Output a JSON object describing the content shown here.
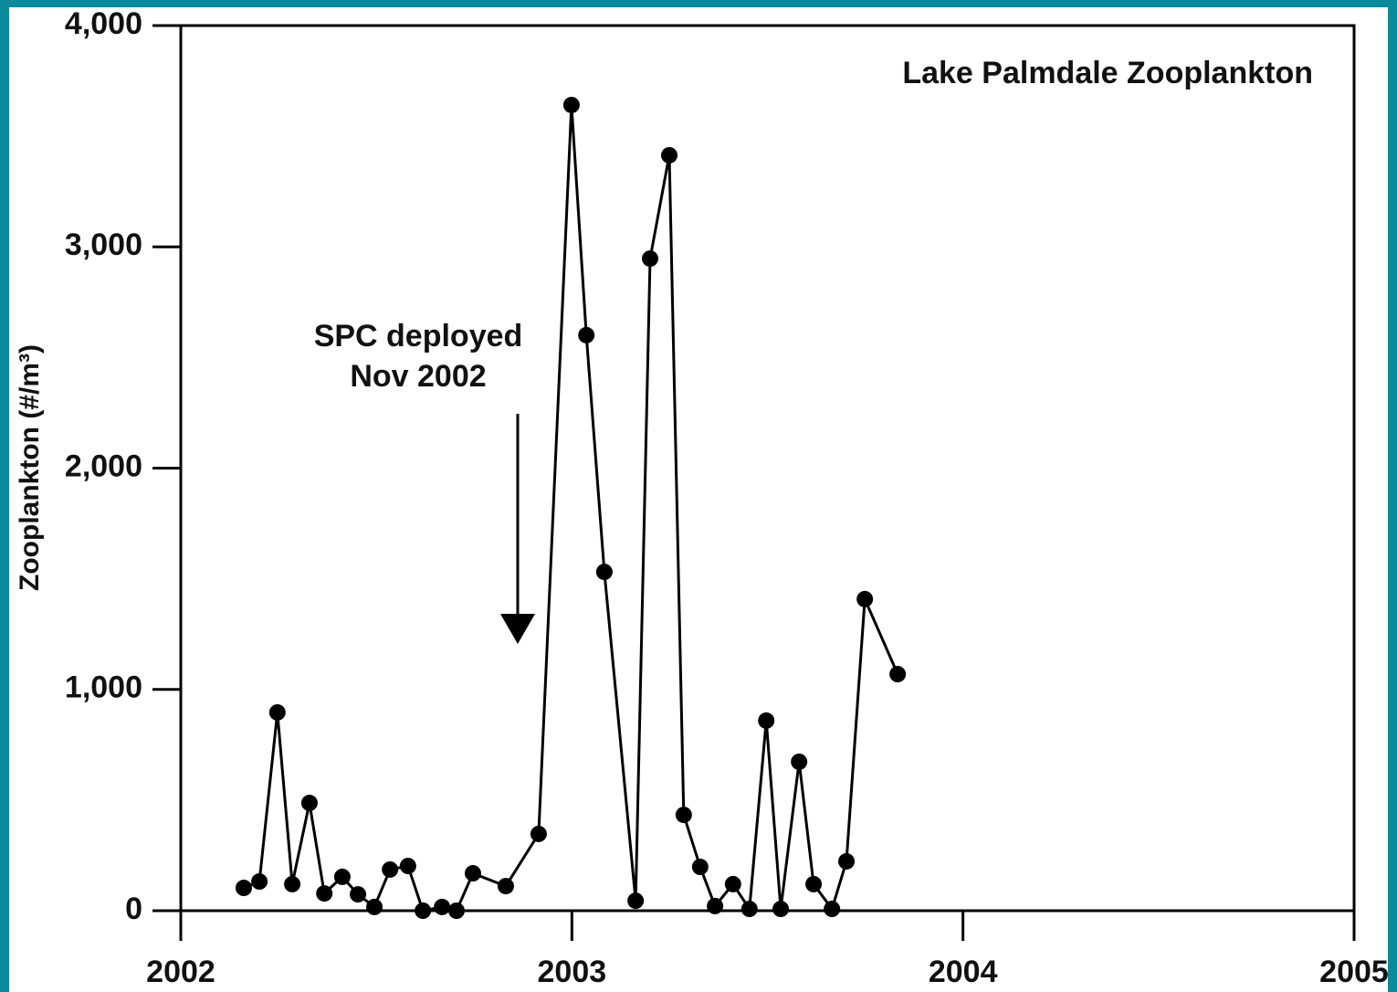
{
  "chart_data": {
    "type": "line",
    "title": "Lake Palmdale Zooplankton",
    "y_label": "Zooplankton (#/m³)",
    "annotation": [
      "SPC deployed",
      "Nov 2002"
    ],
    "x": [
      2002.161,
      2002.201,
      2002.247,
      2002.285,
      2002.329,
      2002.367,
      2002.413,
      2002.453,
      2002.495,
      2002.535,
      2002.581,
      2002.619,
      2002.668,
      2002.705,
      2002.747,
      2002.831,
      2002.915,
      2002.999,
      2003.037,
      2003.083,
      2003.163,
      2003.2,
      2003.249,
      2003.286,
      2003.328,
      2003.366,
      2003.412,
      2003.454,
      2003.497,
      2003.534,
      2003.581,
      2003.618,
      2003.665,
      2003.702,
      2003.749,
      2003.833
    ],
    "series": [
      {
        "name": "Zooplankton",
        "color": "#000000",
        "values": [
          103,
          132,
          896,
          120,
          487,
          78,
          153,
          74,
          17,
          186,
          202,
          0,
          17,
          0,
          169,
          111,
          347,
          3641,
          2601,
          1531,
          45,
          2947,
          3414,
          433,
          198,
          21,
          120,
          8,
          859,
          8,
          673,
          120,
          8,
          223,
          1408,
          1069
        ]
      }
    ],
    "xlim": [
      2002,
      2005
    ],
    "xticks": [
      2002,
      2003,
      2004,
      2005
    ],
    "ylim": [
      0,
      4000
    ],
    "yticks": [
      0,
      {
        "value": 1000,
        "label": "1,000"
      },
      {
        "value": 2000,
        "label": "2,000"
      },
      {
        "value": 3000,
        "label": "3,000"
      },
      {
        "value": 4000,
        "label": "4,000"
      }
    ],
    "grid": false
  }
}
